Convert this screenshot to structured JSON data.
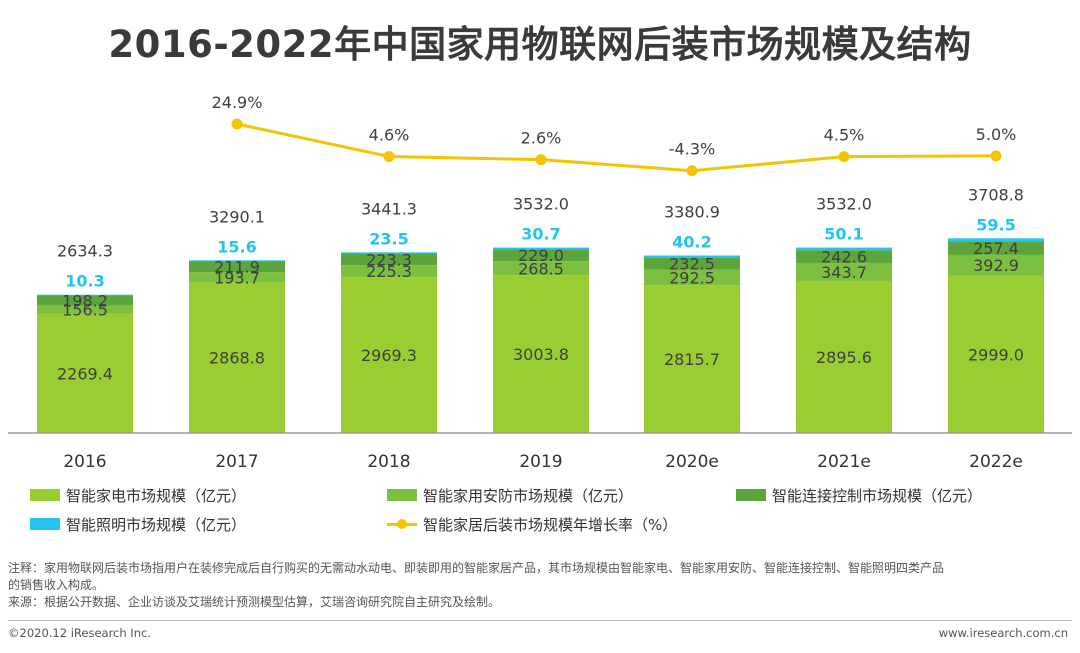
{
  "title": "2016-2022年中国家用物联网后装市场规模及结构",
  "chart_data": {
    "type": "stacked-bar+line",
    "categories": [
      "2016",
      "2017",
      "2018",
      "2019",
      "2020e",
      "2021e",
      "2022e"
    ],
    "series": [
      {
        "name": "智能家电市场规模（亿元）",
        "color": "#9ACD32",
        "values": [
          2269.4,
          2868.8,
          2969.3,
          3003.8,
          2815.7,
          2895.6,
          2999.0
        ]
      },
      {
        "name": "智能家用安防市场规模（亿元）",
        "color": "#7DBF3F",
        "values": [
          156.5,
          193.7,
          225.3,
          268.5,
          292.5,
          343.7,
          392.9
        ]
      },
      {
        "name": "智能连接控制市场规模（亿元）",
        "color": "#5BA53A",
        "values": [
          198.2,
          211.9,
          223.3,
          229.0,
          232.5,
          242.6,
          257.4
        ]
      },
      {
        "name": "智能照明市场规模（亿元）",
        "color": "#22C4F0",
        "values": [
          10.3,
          15.6,
          23.5,
          30.7,
          40.2,
          50.1,
          59.5
        ]
      }
    ],
    "totals": [
      "2634.3",
      "3290.1",
      "3441.3",
      "3532.0",
      "3380.9",
      "3532.0",
      "3708.8"
    ],
    "line": {
      "name": "智能家居后装市场规模年增长率（%）",
      "color": "#F5C400",
      "values": [
        null,
        24.9,
        4.6,
        2.6,
        -4.3,
        4.5,
        5.0
      ],
      "labels": [
        "",
        "24.9%",
        "4.6%",
        "2.6%",
        "-4.3%",
        "4.5%",
        "5.0%"
      ]
    },
    "ylim": [
      0,
      4500
    ]
  },
  "notes": {
    "line1": "注释：家用物联网后装市场指用户在装修完成后自行购买的无需动水动电、即装即用的智能家居产品，其市场规模由智能家电、智能家用安防、智能连接控制、智能照明四类产品",
    "line2": "的销售收入构成。",
    "line3": "来源：根据公开数据、企业访谈及艾瑞统计预测模型估算，艾瑞咨询研究院自主研究及绘制。"
  },
  "footer": {
    "copyright": "©2020.12 iResearch Inc.",
    "website": "www.iresearch.com.cn"
  }
}
